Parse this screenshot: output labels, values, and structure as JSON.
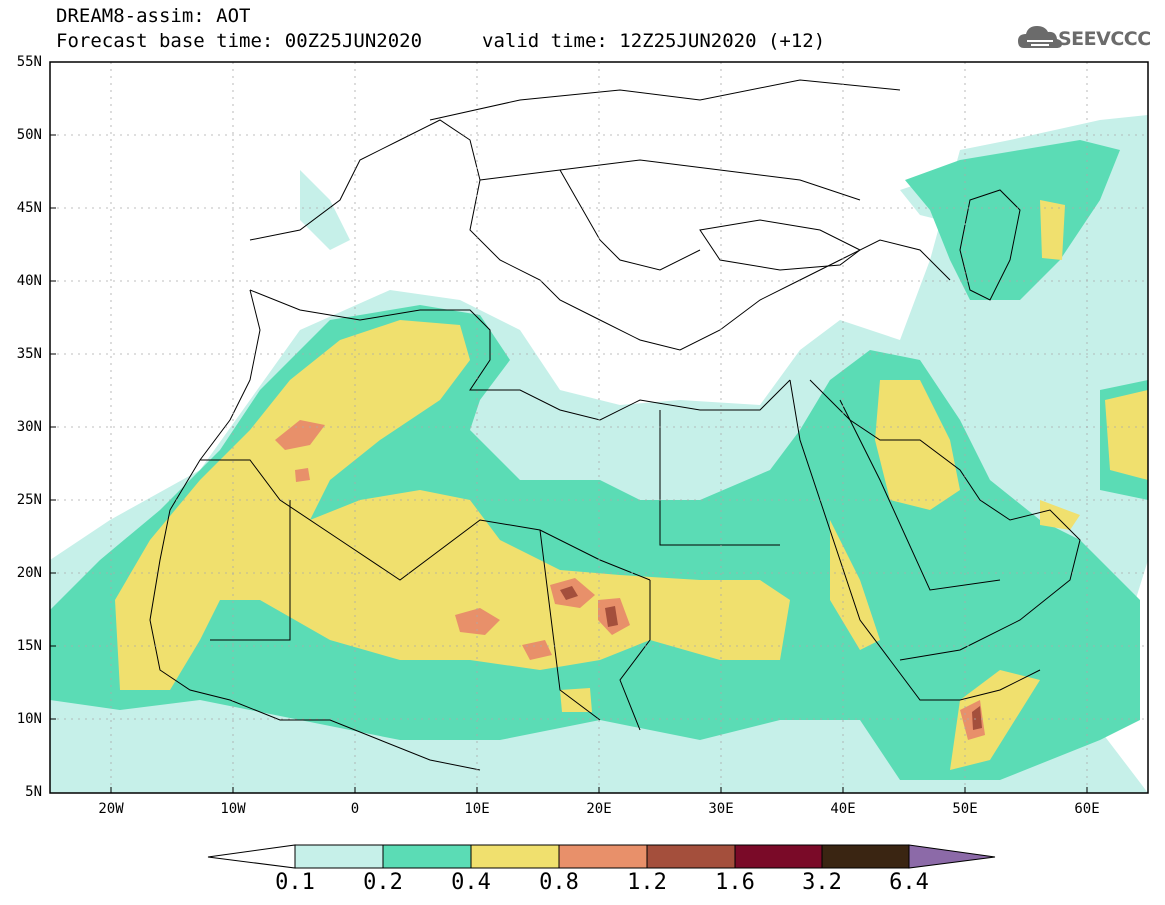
{
  "title": {
    "line1": "DREAM8-assim: AOT",
    "line2": "Forecast base time: 00Z25JUN2020",
    "valid": "valid time: 12Z25JUN2020 (+12)"
  },
  "logo": {
    "text": "SEEVCCC",
    "icon": "cloud-icon"
  },
  "map": {
    "lat_labels": [
      "55N",
      "50N",
      "45N",
      "40N",
      "35N",
      "30N",
      "25N",
      "20N",
      "15N",
      "10N",
      "5N"
    ],
    "lon_labels": [
      "20W",
      "10W",
      "0",
      "10E",
      "20E",
      "30E",
      "40E",
      "50E",
      "60E"
    ],
    "extent": {
      "lon_min": -25,
      "lon_max": 65,
      "lat_min": 5,
      "lat_max": 55
    },
    "grid": true,
    "variable": "AOT"
  },
  "colorbar": {
    "labels": [
      "0.1",
      "0.2",
      "0.4",
      "0.8",
      "1.2",
      "1.6",
      "3.2",
      "6.4"
    ],
    "colors": [
      "#ffffff",
      "#c6f0e9",
      "#5bdcb5",
      "#f0e06e",
      "#e8906a",
      "#a44f3c",
      "#7a0a28",
      "#3a2512",
      "#8c6aa8"
    ]
  }
}
